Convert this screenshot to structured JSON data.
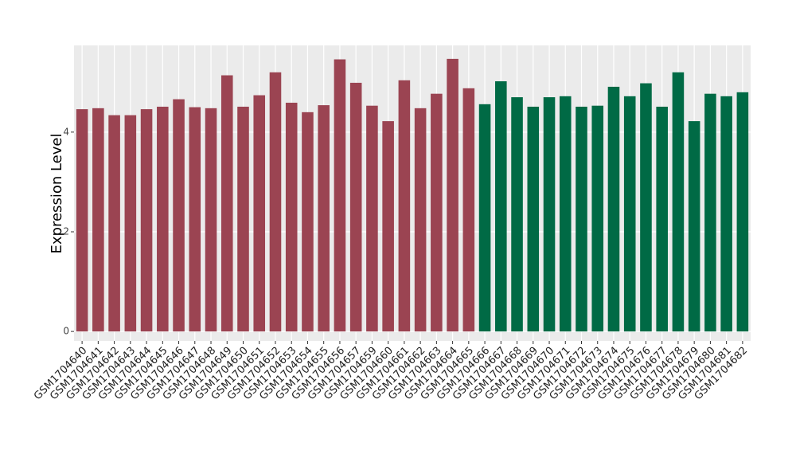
{
  "chart_data": {
    "type": "bar",
    "y_label": "Expression Level",
    "categories": [
      "GSM1704640",
      "GSM1704641",
      "GSM1704642",
      "GSM1704643",
      "GSM1704644",
      "GSM1704645",
      "GSM1704646",
      "GSM1704647",
      "GSM1704648",
      "GSM1704649",
      "GSM1704650",
      "GSM1704651",
      "GSM1704652",
      "GSM1704653",
      "GSM1704654",
      "GSM1704655",
      "GSM1704656",
      "GSM1704657",
      "GSM1704659",
      "GSM1704660",
      "GSM1704661",
      "GSM1704662",
      "GSM1704663",
      "GSM1704664",
      "GSM1704665",
      "GSM1704666",
      "GSM1704667",
      "GSM1704668",
      "GSM1704669",
      "GSM1704670",
      "GSM1704671",
      "GSM1704672",
      "GSM1704673",
      "GSM1704674",
      "GSM1704675",
      "GSM1704676",
      "GSM1704677",
      "GSM1704678",
      "GSM1704679",
      "GSM1704680",
      "GSM1704681",
      "GSM1704682"
    ],
    "values": [
      4.46,
      4.48,
      4.34,
      4.34,
      4.46,
      4.51,
      4.66,
      4.5,
      4.48,
      5.14,
      4.51,
      4.74,
      5.2,
      4.59,
      4.4,
      4.54,
      5.46,
      4.99,
      4.53,
      4.22,
      5.04,
      4.48,
      4.77,
      5.47,
      4.88,
      4.56,
      5.02,
      4.7,
      4.51,
      4.7,
      4.72,
      4.51,
      4.53,
      4.91,
      4.72,
      4.98,
      4.51,
      5.2,
      4.22,
      4.77,
      4.72,
      4.8
    ],
    "colors": [
      "#9b4452",
      "#9b4452",
      "#9b4452",
      "#9b4452",
      "#9b4452",
      "#9b4452",
      "#9b4452",
      "#9b4452",
      "#9b4452",
      "#9b4452",
      "#9b4452",
      "#9b4452",
      "#9b4452",
      "#9b4452",
      "#9b4452",
      "#9b4452",
      "#9b4452",
      "#9b4452",
      "#9b4452",
      "#9b4452",
      "#9b4452",
      "#9b4452",
      "#9b4452",
      "#9b4452",
      "#9b4452",
      "#006a45",
      "#006a45",
      "#006a45",
      "#006a45",
      "#006a45",
      "#006a45",
      "#006a45",
      "#006a45",
      "#006a45",
      "#006a45",
      "#006a45",
      "#006a45",
      "#006a45",
      "#006a45",
      "#006a45",
      "#006a45",
      "#006a45"
    ],
    "ylim": [
      -0.19,
      5.74
    ],
    "yticks": [
      0,
      2,
      4
    ],
    "grid": true
  }
}
